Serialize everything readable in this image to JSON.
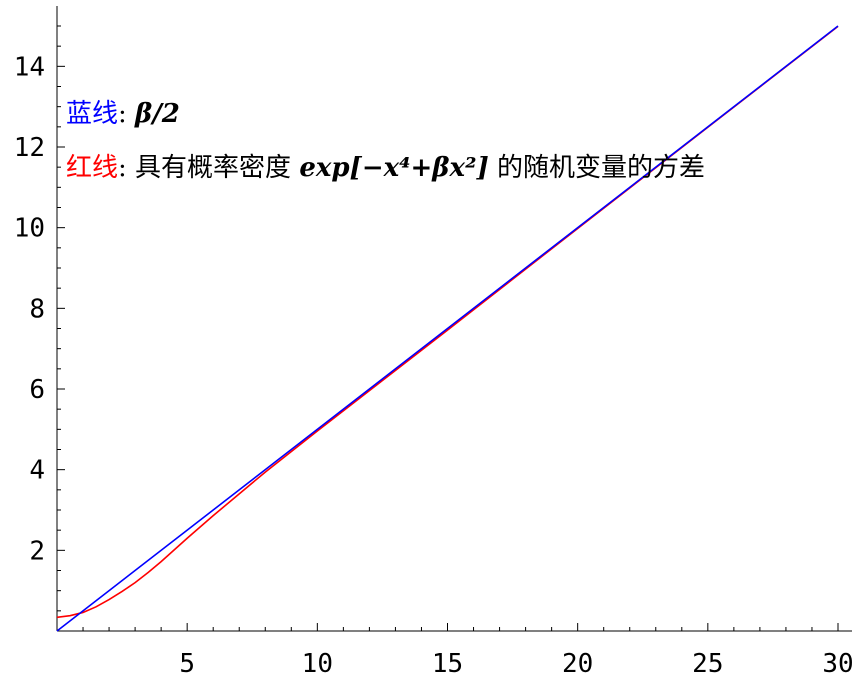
{
  "chart_data": {
    "type": "line",
    "xlim": [
      0,
      30
    ],
    "ylim": [
      0,
      15
    ],
    "x_ticks": [
      5,
      10,
      15,
      20,
      25,
      30
    ],
    "y_ticks": [
      2,
      4,
      6,
      8,
      10,
      12,
      14
    ],
    "grid": false,
    "legend_placement": "top-left",
    "series": [
      {
        "color": "#0000ff",
        "x": [
          0,
          30
        ],
        "y": [
          0,
          15
        ]
      },
      {
        "color": "#ff0000",
        "x": [
          0,
          0.5,
          1,
          1.5,
          2,
          2.5,
          3,
          3.5,
          4,
          5,
          6,
          7,
          8,
          10,
          12,
          15,
          20,
          25,
          30
        ],
        "y": [
          0.34,
          0.38,
          0.46,
          0.6,
          0.78,
          0.98,
          1.2,
          1.45,
          1.72,
          2.3,
          2.86,
          3.4,
          3.94,
          4.96,
          5.96,
          7.46,
          9.98,
          12.49,
          14.99
        ]
      }
    ],
    "legend": [
      {
        "prefix": "蓝线",
        "sep": ": ",
        "formula": "β/2",
        "color": "#0000ff"
      },
      {
        "prefix": "红线",
        "sep": ": ",
        "desc_before": "具有概率密度 ",
        "formula": "exp[−x⁴+βx²]",
        "desc_after": " 的随机变量的方差",
        "color": "#ff0000"
      }
    ]
  }
}
